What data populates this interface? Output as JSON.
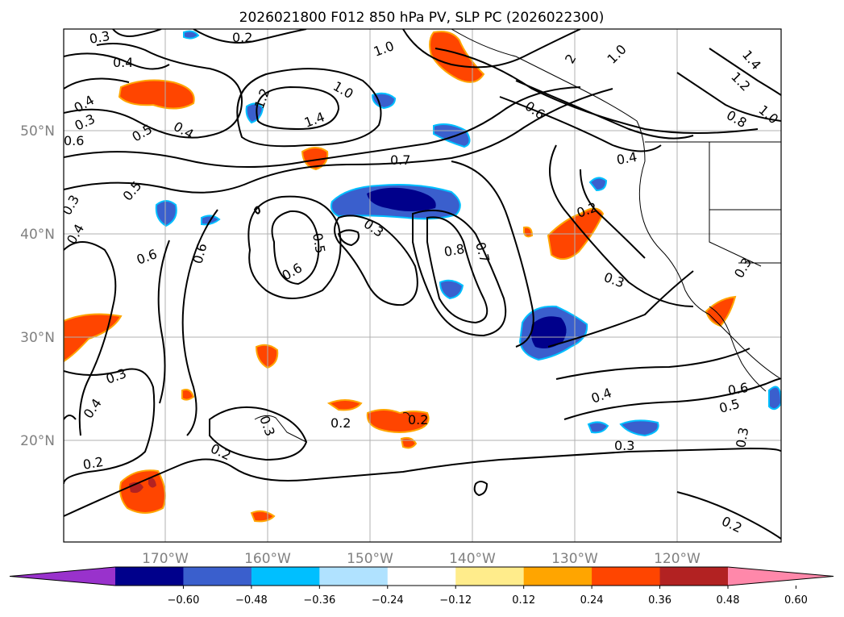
{
  "title": "2026021800 F012 850 hPa PV, SLP PC (2026022300)",
  "lon_labels": [
    "170°W",
    "160°W",
    "150°W",
    "140°W",
    "130°W",
    "120°W"
  ],
  "lat_labels": [
    "50°N",
    "40°N",
    "30°N",
    "20°N"
  ],
  "colorbar": {
    "ticks": [
      "−0.60",
      "−0.48",
      "−0.36",
      "−0.24",
      "−0.12",
      "0.12",
      "0.24",
      "0.36",
      "0.48",
      "0.60"
    ],
    "colors": [
      "#9932cc",
      "#00008b",
      "#3a5fcd",
      "#00bfff",
      "#b0e2ff",
      "#ffffff",
      "#ffec8b",
      "#ffa500",
      "#ff4500",
      "#b22222",
      "#ff88aa"
    ]
  },
  "contour_labels": [
    "0.3",
    "0.4",
    "0.2",
    "0.3",
    "1.0",
    "2",
    "1.0",
    "1.4",
    "1.2",
    "0.8",
    "1.0",
    "0.4",
    "0.5",
    "0.4",
    "0.6",
    "1.0",
    "1.2",
    "1.4",
    "0.6",
    "0.4",
    "0.7",
    "0.5",
    "0.3",
    "0.4",
    "0.6",
    "0.6",
    "0.3",
    "0.5",
    "0.6",
    "0.8",
    "0.7",
    "0.2",
    "0.3",
    "0.3",
    "0.4",
    "0.2",
    "0.3",
    "0.2",
    "0.2",
    "0.2",
    "0.3",
    "0.4",
    "0.5",
    "0.6",
    "0.3",
    "0.3",
    "0.2"
  ],
  "colors": {
    "contour": "#000000",
    "grid": "#b0b0b0",
    "positive_pv": "#ff4500",
    "negative_pv": "#00008b"
  }
}
